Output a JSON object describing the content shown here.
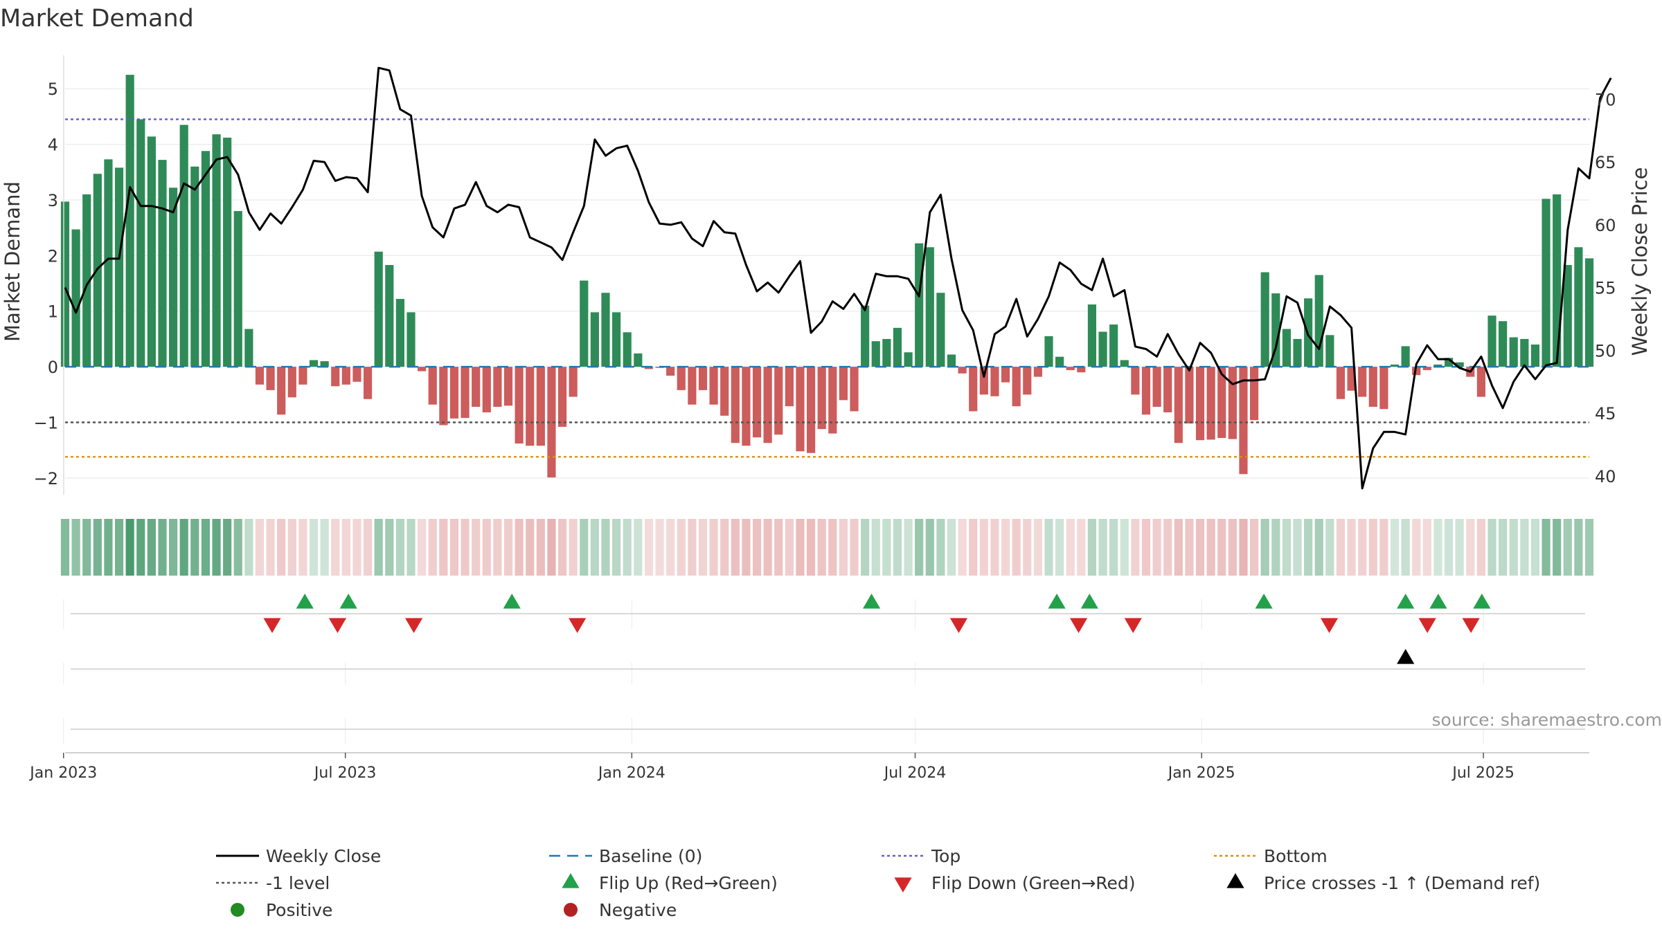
{
  "chart_data": {
    "type": "bar",
    "title": "Market Demand",
    "ylabel": "Market Demand",
    "y2label": "Weekly Close Price",
    "ylim": [
      -2.3,
      5.6
    ],
    "y2lim": [
      38.5,
      73.5
    ],
    "yticks": [
      -2,
      -1,
      0,
      1,
      2,
      3,
      4,
      5
    ],
    "yticklabels": [
      "−2",
      "−1",
      "0",
      "1",
      "2",
      "3",
      "4",
      "5"
    ],
    "y2ticks": [
      40,
      45,
      50,
      55,
      60,
      65,
      70
    ],
    "x_start": "2023-01-02",
    "x_end": "2025-09-07",
    "xticks": [
      "2023-01-01",
      "2023-07-01",
      "2024-01-01",
      "2024-07-01",
      "2025-01-01",
      "2025-07-01"
    ],
    "xticklabels": [
      "Jan 2023",
      "Jul 2023",
      "Jan 2024",
      "Jul 2024",
      "Jan 2025",
      "Jul 2025"
    ],
    "levels": {
      "top": 4.45,
      "minus_one": -1.0,
      "bottom": -1.62,
      "baseline": 0
    },
    "demand": [
      2.97,
      2.47,
      3.1,
      3.47,
      3.73,
      3.58,
      5.25,
      4.45,
      4.14,
      3.72,
      3.22,
      4.35,
      3.6,
      3.88,
      4.18,
      4.12,
      2.8,
      0.68,
      -0.32,
      -0.42,
      -0.86,
      -0.55,
      -0.32,
      0.12,
      0.1,
      -0.35,
      -0.32,
      -0.27,
      -0.58,
      2.07,
      1.83,
      1.22,
      0.98,
      -0.08,
      -0.68,
      -1.05,
      -0.93,
      -0.92,
      -0.72,
      -0.82,
      -0.72,
      -0.7,
      -1.38,
      -1.42,
      -1.42,
      -1.99,
      -1.08,
      -0.54,
      1.55,
      0.98,
      1.33,
      0.98,
      0.62,
      0.24,
      -0.04,
      -0.02,
      -0.16,
      -0.42,
      -0.68,
      -0.42,
      -0.68,
      -0.88,
      -1.37,
      -1.42,
      -1.27,
      -1.37,
      -1.22,
      -0.71,
      -1.52,
      -1.55,
      -1.12,
      -1.2,
      -0.6,
      -0.8,
      1.1,
      0.46,
      0.5,
      0.7,
      0.26,
      2.22,
      2.15,
      1.33,
      0.22,
      -0.12,
      -0.8,
      -0.5,
      -0.53,
      -0.28,
      -0.71,
      -0.5,
      -0.18,
      0.55,
      0.18,
      -0.06,
      -0.1,
      1.12,
      0.63,
      0.76,
      0.12,
      -0.5,
      -0.86,
      -0.72,
      -0.82,
      -1.37,
      -1.02,
      -1.32,
      -1.31,
      -1.28,
      -1.3,
      -1.93,
      -0.96,
      1.7,
      1.32,
      0.68,
      0.5,
      1.23,
      1.65,
      0.57,
      -0.58,
      -0.43,
      -0.54,
      -0.72,
      -0.76,
      0.04,
      0.37,
      -0.15,
      -0.06,
      0.04,
      0.16,
      0.08,
      -0.18,
      -0.54,
      0.92,
      0.82,
      0.53,
      0.5,
      0.4,
      3.02,
      3.1,
      1.83,
      2.15,
      1.95
    ],
    "close": [
      55,
      53,
      55.2,
      56.5,
      57.3,
      57.3,
      63,
      61.5,
      61.5,
      61.3,
      61,
      63.3,
      62.8,
      64,
      65.2,
      65.4,
      64,
      61,
      59.6,
      60.9,
      60.1,
      61.4,
      62.8,
      65.1,
      65,
      63.5,
      63.8,
      63.7,
      62.6,
      72.5,
      72.3,
      69.2,
      68.7,
      62.3,
      59.8,
      59,
      61.3,
      61.6,
      63.4,
      61.5,
      61,
      61.6,
      61.4,
      59,
      58.6,
      58.2,
      57.2,
      59.4,
      61.5,
      66.8,
      65.5,
      66.1,
      66.3,
      64.3,
      61.8,
      60.1,
      60,
      60.2,
      58.9,
      58.3,
      60.3,
      59.4,
      59.3,
      56.8,
      54.7,
      55.4,
      54.6,
      55.9,
      57.1,
      51.4,
      52.3,
      53.9,
      53.3,
      54.5,
      53.2,
      56.1,
      55.9,
      55.9,
      55.7,
      54.3,
      61,
      62.4,
      57.3,
      53.2,
      51.6,
      47.9,
      51.3,
      51.9,
      54.1,
      51.1,
      52.5,
      54.3,
      57,
      56.4,
      55.3,
      54.8,
      57.3,
      54.3,
      54.8,
      50.3,
      50.1,
      49.5,
      51.3,
      49.7,
      48.4,
      50.6,
      49.8,
      48.1,
      47.3,
      47.6,
      47.6,
      47.7,
      50.2,
      54.3,
      53.8,
      51.2,
      50.1,
      53.5,
      52.8,
      51.8,
      39,
      42.2,
      43.5,
      43.5,
      43.3,
      48.9,
      50.4,
      49.3,
      49.3,
      48.6,
      48.3,
      49.5,
      47.2,
      45.4,
      47.5,
      48.8,
      47.7,
      48.8,
      49,
      59.6,
      64.5,
      63.7,
      70.1,
      71.7
    ],
    "flip_up": [
      "2023-06-05",
      "2023-07-03",
      "2023-10-16",
      "2024-06-03",
      "2024-09-30",
      "2024-10-21",
      "2025-02-10",
      "2025-05-12",
      "2025-06-02",
      "2025-06-30"
    ],
    "flip_down": [
      "2023-05-15",
      "2023-06-26",
      "2023-08-14",
      "2023-11-27",
      "2024-07-29",
      "2024-10-14",
      "2024-11-18",
      "2025-03-24",
      "2025-05-26",
      "2025-06-23"
    ],
    "price_cross": [
      "2025-05-12"
    ],
    "source": "source: sharemaestro.com",
    "legend": [
      {
        "key": "close",
        "label": "Weekly Close"
      },
      {
        "key": "baseline",
        "label": "Baseline (0)"
      },
      {
        "key": "top",
        "label": "Top"
      },
      {
        "key": "bottom",
        "label": "Bottom"
      },
      {
        "key": "minus_one",
        "label": "-1 level"
      },
      {
        "key": "flip_up",
        "label": "Flip Up (Red→Green)"
      },
      {
        "key": "flip_down",
        "label": "Flip Down (Green→Red)"
      },
      {
        "key": "price_cross",
        "label": "Price crosses -1 ↑ (Demand ref)"
      },
      {
        "key": "positive",
        "label": "Positive"
      },
      {
        "key": "negative",
        "label": "Negative"
      }
    ],
    "colors": {
      "positive": "#2e8b57",
      "negative": "#cd5c5c",
      "close": "#000000",
      "baseline": "#1f77b4",
      "top": "#6a5acd",
      "bottom": "#dd8f10",
      "minus_one": "#555555",
      "flip_up": "#22a14a",
      "flip_down": "#d62728",
      "price_cross": "#000000",
      "legend_positive": "#228b22",
      "legend_negative": "#b22222"
    }
  }
}
